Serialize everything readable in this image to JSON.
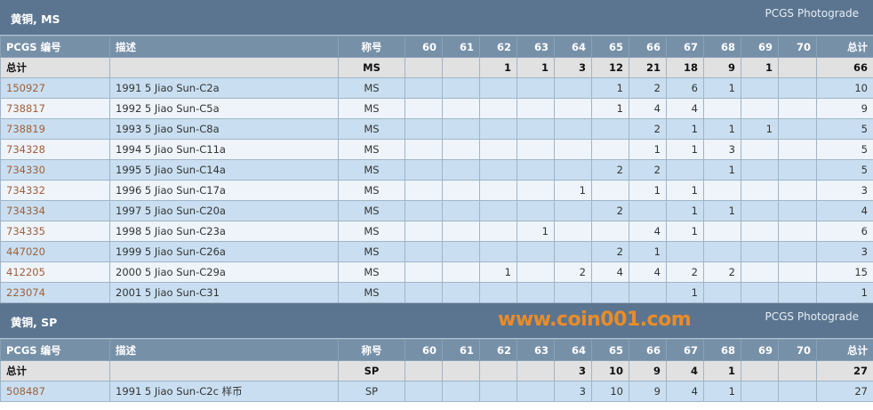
{
  "columns": {
    "pcgs": "PCGS 编号",
    "desc": "描述",
    "designation": "称号",
    "grades": [
      "60",
      "61",
      "62",
      "63",
      "64",
      "65",
      "66",
      "67",
      "68",
      "69",
      "70"
    ],
    "total": "总计"
  },
  "sections": [
    {
      "title": "黄铜, MS",
      "photograde": "PCGS Photograde",
      "total": {
        "label": "总计",
        "designation": "MS",
        "counts": [
          "",
          "",
          "1",
          "1",
          "3",
          "12",
          "21",
          "18",
          "9",
          "1",
          ""
        ],
        "total": "66"
      },
      "rows": [
        {
          "pcgs": "150927",
          "desc": "1991 5 Jiao Sun-C2a",
          "designation": "MS",
          "counts": [
            "",
            "",
            "",
            "",
            "",
            "1",
            "2",
            "6",
            "1",
            "",
            ""
          ],
          "total": "10"
        },
        {
          "pcgs": "738817",
          "desc": "1992 5 Jiao Sun-C5a",
          "designation": "MS",
          "counts": [
            "",
            "",
            "",
            "",
            "",
            "1",
            "4",
            "4",
            "",
            "",
            ""
          ],
          "total": "9"
        },
        {
          "pcgs": "738819",
          "desc": "1993 5 Jiao Sun-C8a",
          "designation": "MS",
          "counts": [
            "",
            "",
            "",
            "",
            "",
            "",
            "2",
            "1",
            "1",
            "1",
            ""
          ],
          "total": "5"
        },
        {
          "pcgs": "734328",
          "desc": "1994 5 Jiao Sun-C11a",
          "designation": "MS",
          "counts": [
            "",
            "",
            "",
            "",
            "",
            "",
            "1",
            "1",
            "3",
            "",
            ""
          ],
          "total": "5"
        },
        {
          "pcgs": "734330",
          "desc": "1995 5 Jiao Sun-C14a",
          "designation": "MS",
          "counts": [
            "",
            "",
            "",
            "",
            "",
            "2",
            "2",
            "",
            "1",
            "",
            ""
          ],
          "total": "5"
        },
        {
          "pcgs": "734332",
          "desc": "1996 5 Jiao Sun-C17a",
          "designation": "MS",
          "counts": [
            "",
            "",
            "",
            "",
            "1",
            "",
            "1",
            "1",
            "",
            "",
            ""
          ],
          "total": "3"
        },
        {
          "pcgs": "734334",
          "desc": "1997 5 Jiao Sun-C20a",
          "designation": "MS",
          "counts": [
            "",
            "",
            "",
            "",
            "",
            "2",
            "",
            "1",
            "1",
            "",
            ""
          ],
          "total": "4"
        },
        {
          "pcgs": "734335",
          "desc": "1998 5 Jiao Sun-C23a",
          "designation": "MS",
          "counts": [
            "",
            "",
            "",
            "1",
            "",
            "",
            "4",
            "1",
            "",
            "",
            ""
          ],
          "total": "6"
        },
        {
          "pcgs": "447020",
          "desc": "1999 5 Jiao Sun-C26a",
          "designation": "MS",
          "counts": [
            "",
            "",
            "",
            "",
            "",
            "2",
            "1",
            "",
            "",
            "",
            ""
          ],
          "total": "3"
        },
        {
          "pcgs": "412205",
          "desc": "2000 5 Jiao Sun-C29a",
          "designation": "MS",
          "counts": [
            "",
            "",
            "1",
            "",
            "2",
            "4",
            "4",
            "2",
            "2",
            "",
            ""
          ],
          "total": "15"
        },
        {
          "pcgs": "223074",
          "desc": "2001 5 Jiao Sun-C31",
          "designation": "MS",
          "counts": [
            "",
            "",
            "",
            "",
            "",
            "",
            "",
            "1",
            "",
            "",
            ""
          ],
          "total": "1"
        }
      ]
    },
    {
      "title": "黄铜, SP",
      "photograde": "PCGS Photograde",
      "total": {
        "label": "总计",
        "designation": "SP",
        "counts": [
          "",
          "",
          "",
          "",
          "3",
          "10",
          "9",
          "4",
          "1",
          "",
          ""
        ],
        "total": "27"
      },
      "rows": [
        {
          "pcgs": "508487",
          "desc": "1991 5 Jiao Sun-C2c 样币",
          "designation": "SP",
          "counts": [
            "",
            "",
            "",
            "",
            "3",
            "10",
            "9",
            "4",
            "1",
            "",
            ""
          ],
          "total": "27"
        }
      ]
    }
  ],
  "watermark": "www.coin001.com"
}
